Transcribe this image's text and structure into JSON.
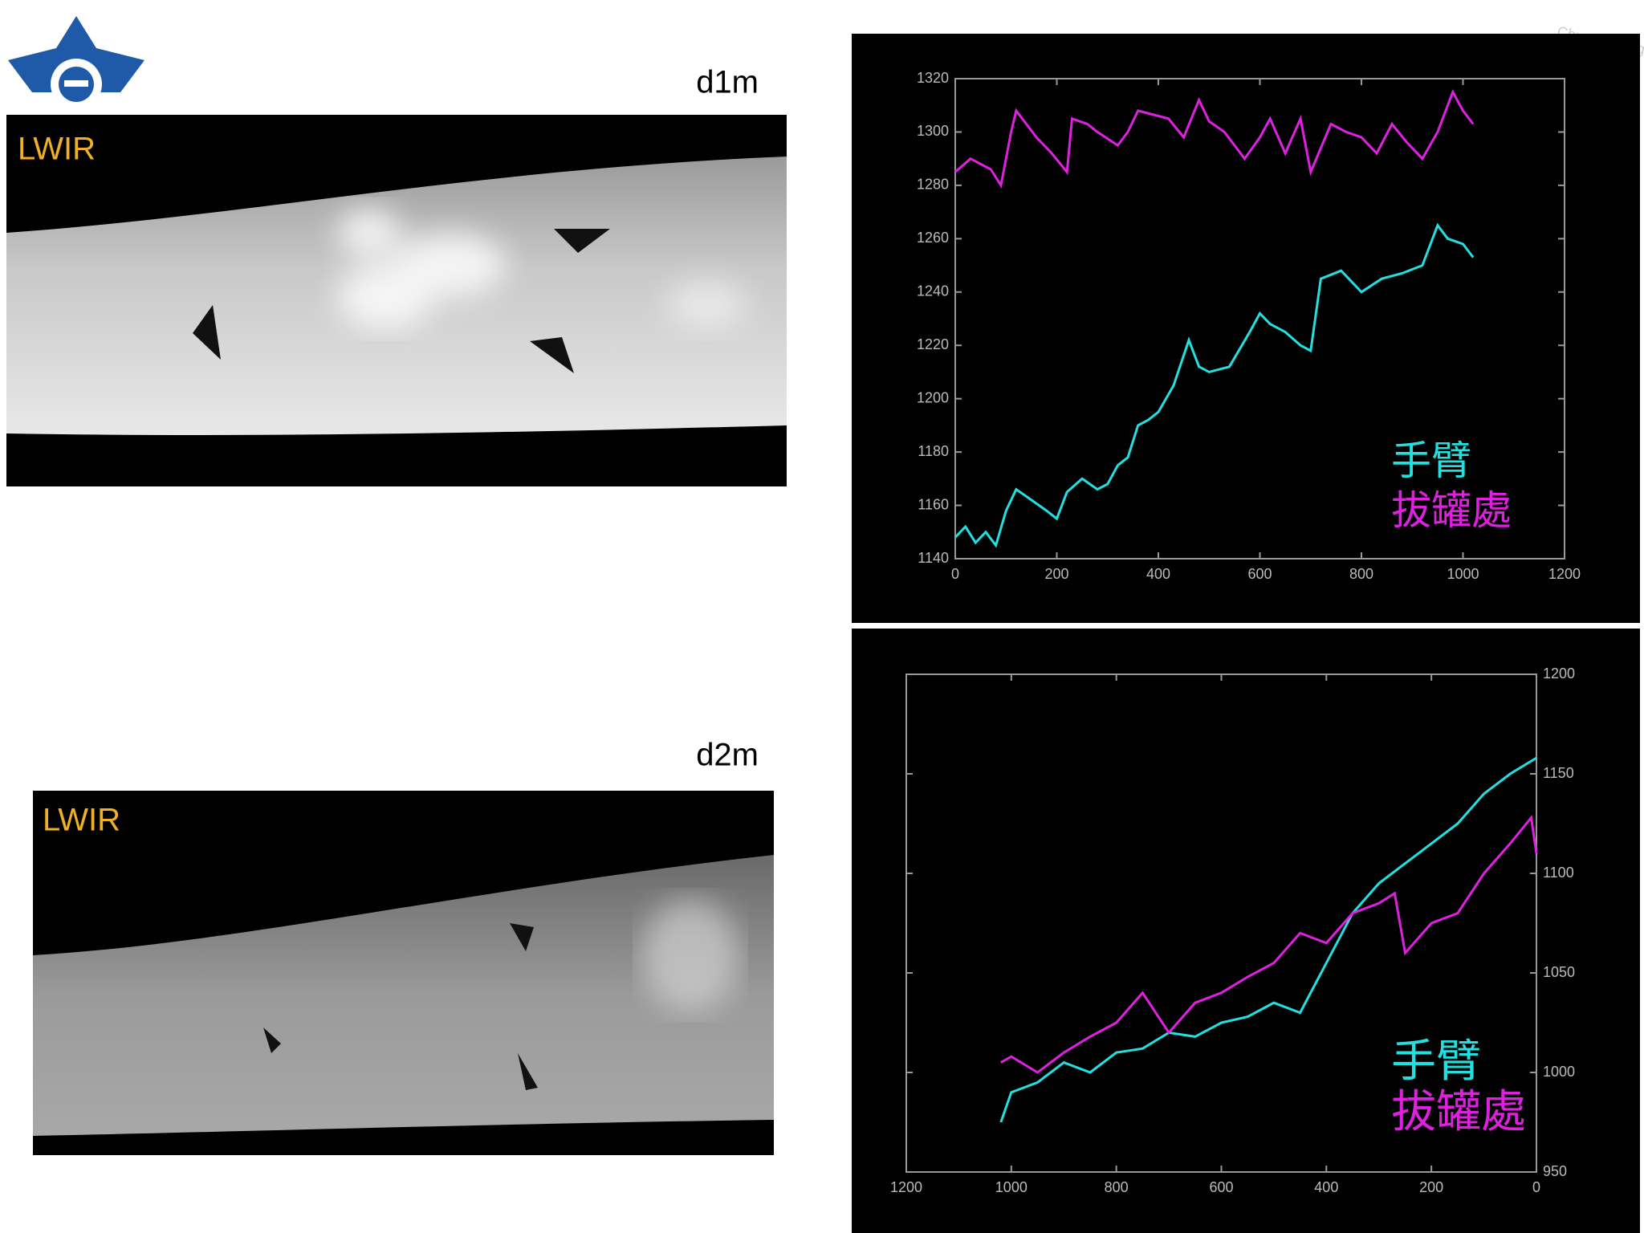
{
  "slide": {
    "watermark": "Chung Cheng",
    "panels": [
      {
        "distance": "d1m",
        "sensor": "LWIR"
      },
      {
        "distance": "d2m",
        "sensor": "LWIR"
      }
    ]
  },
  "chart_data": [
    {
      "type": "line",
      "xlim": [
        0,
        1200
      ],
      "ylim": [
        1140,
        1320
      ],
      "xticks": [
        0,
        200,
        400,
        600,
        800,
        1000,
        1200
      ],
      "yticks": [
        1140,
        1160,
        1180,
        1200,
        1220,
        1240,
        1260,
        1280,
        1300,
        1320
      ],
      "y_axis_side": "left",
      "series": [
        {
          "name": "手臂",
          "color": "#22e0e0",
          "x": [
            0,
            20,
            40,
            60,
            80,
            100,
            120,
            150,
            180,
            200,
            220,
            250,
            280,
            300,
            320,
            340,
            360,
            380,
            400,
            430,
            460,
            480,
            500,
            540,
            580,
            600,
            620,
            650,
            680,
            700,
            720,
            760,
            800,
            840,
            880,
            920,
            950,
            970,
            1000,
            1020
          ],
          "values": [
            1148,
            1152,
            1146,
            1150,
            1145,
            1158,
            1166,
            1162,
            1158,
            1155,
            1165,
            1170,
            1166,
            1168,
            1175,
            1178,
            1190,
            1192,
            1195,
            1205,
            1222,
            1212,
            1210,
            1212,
            1225,
            1232,
            1228,
            1225,
            1220,
            1218,
            1245,
            1248,
            1240,
            1245,
            1247,
            1250,
            1265,
            1260,
            1258,
            1253
          ]
        },
        {
          "name": "拔罐處",
          "color": "#e020e0",
          "x": [
            0,
            30,
            50,
            70,
            90,
            110,
            120,
            160,
            190,
            220,
            230,
            260,
            280,
            320,
            340,
            360,
            400,
            420,
            450,
            480,
            500,
            530,
            570,
            600,
            620,
            650,
            680,
            700,
            740,
            770,
            800,
            830,
            860,
            890,
            920,
            950,
            980,
            1000,
            1020
          ],
          "values": [
            1285,
            1290,
            1288,
            1286,
            1280,
            1300,
            1308,
            1298,
            1292,
            1285,
            1305,
            1303,
            1300,
            1295,
            1300,
            1308,
            1306,
            1305,
            1298,
            1312,
            1304,
            1300,
            1290,
            1298,
            1305,
            1292,
            1305,
            1285,
            1303,
            1300,
            1298,
            1292,
            1303,
            1296,
            1290,
            1300,
            1315,
            1308,
            1303
          ]
        }
      ]
    },
    {
      "type": "line",
      "xlim": [
        1200,
        0
      ],
      "ylim": [
        950,
        1200
      ],
      "xticks": [
        0,
        200,
        400,
        600,
        800,
        1000,
        1200
      ],
      "yticks": [
        950,
        1000,
        1050,
        1100,
        1150,
        1200
      ],
      "y_axis_side": "right",
      "series": [
        {
          "name": "手臂",
          "color": "#22e0e0",
          "x": [
            1020,
            1000,
            950,
            900,
            850,
            800,
            750,
            700,
            650,
            600,
            550,
            500,
            450,
            400,
            350,
            300,
            250,
            200,
            150,
            100,
            50,
            0
          ],
          "values": [
            975,
            990,
            995,
            1005,
            1000,
            1010,
            1012,
            1020,
            1018,
            1025,
            1028,
            1035,
            1030,
            1055,
            1080,
            1095,
            1105,
            1115,
            1125,
            1140,
            1150,
            1158
          ]
        },
        {
          "name": "拔罐處",
          "color": "#e020e0",
          "x": [
            1020,
            1000,
            950,
            900,
            850,
            800,
            750,
            700,
            650,
            600,
            550,
            500,
            450,
            400,
            350,
            300,
            270,
            250,
            200,
            150,
            100,
            50,
            10,
            0
          ],
          "values": [
            1005,
            1008,
            1000,
            1010,
            1018,
            1025,
            1040,
            1020,
            1035,
            1040,
            1048,
            1055,
            1070,
            1065,
            1080,
            1085,
            1090,
            1060,
            1075,
            1080,
            1100,
            1115,
            1128,
            1110
          ]
        }
      ]
    }
  ]
}
